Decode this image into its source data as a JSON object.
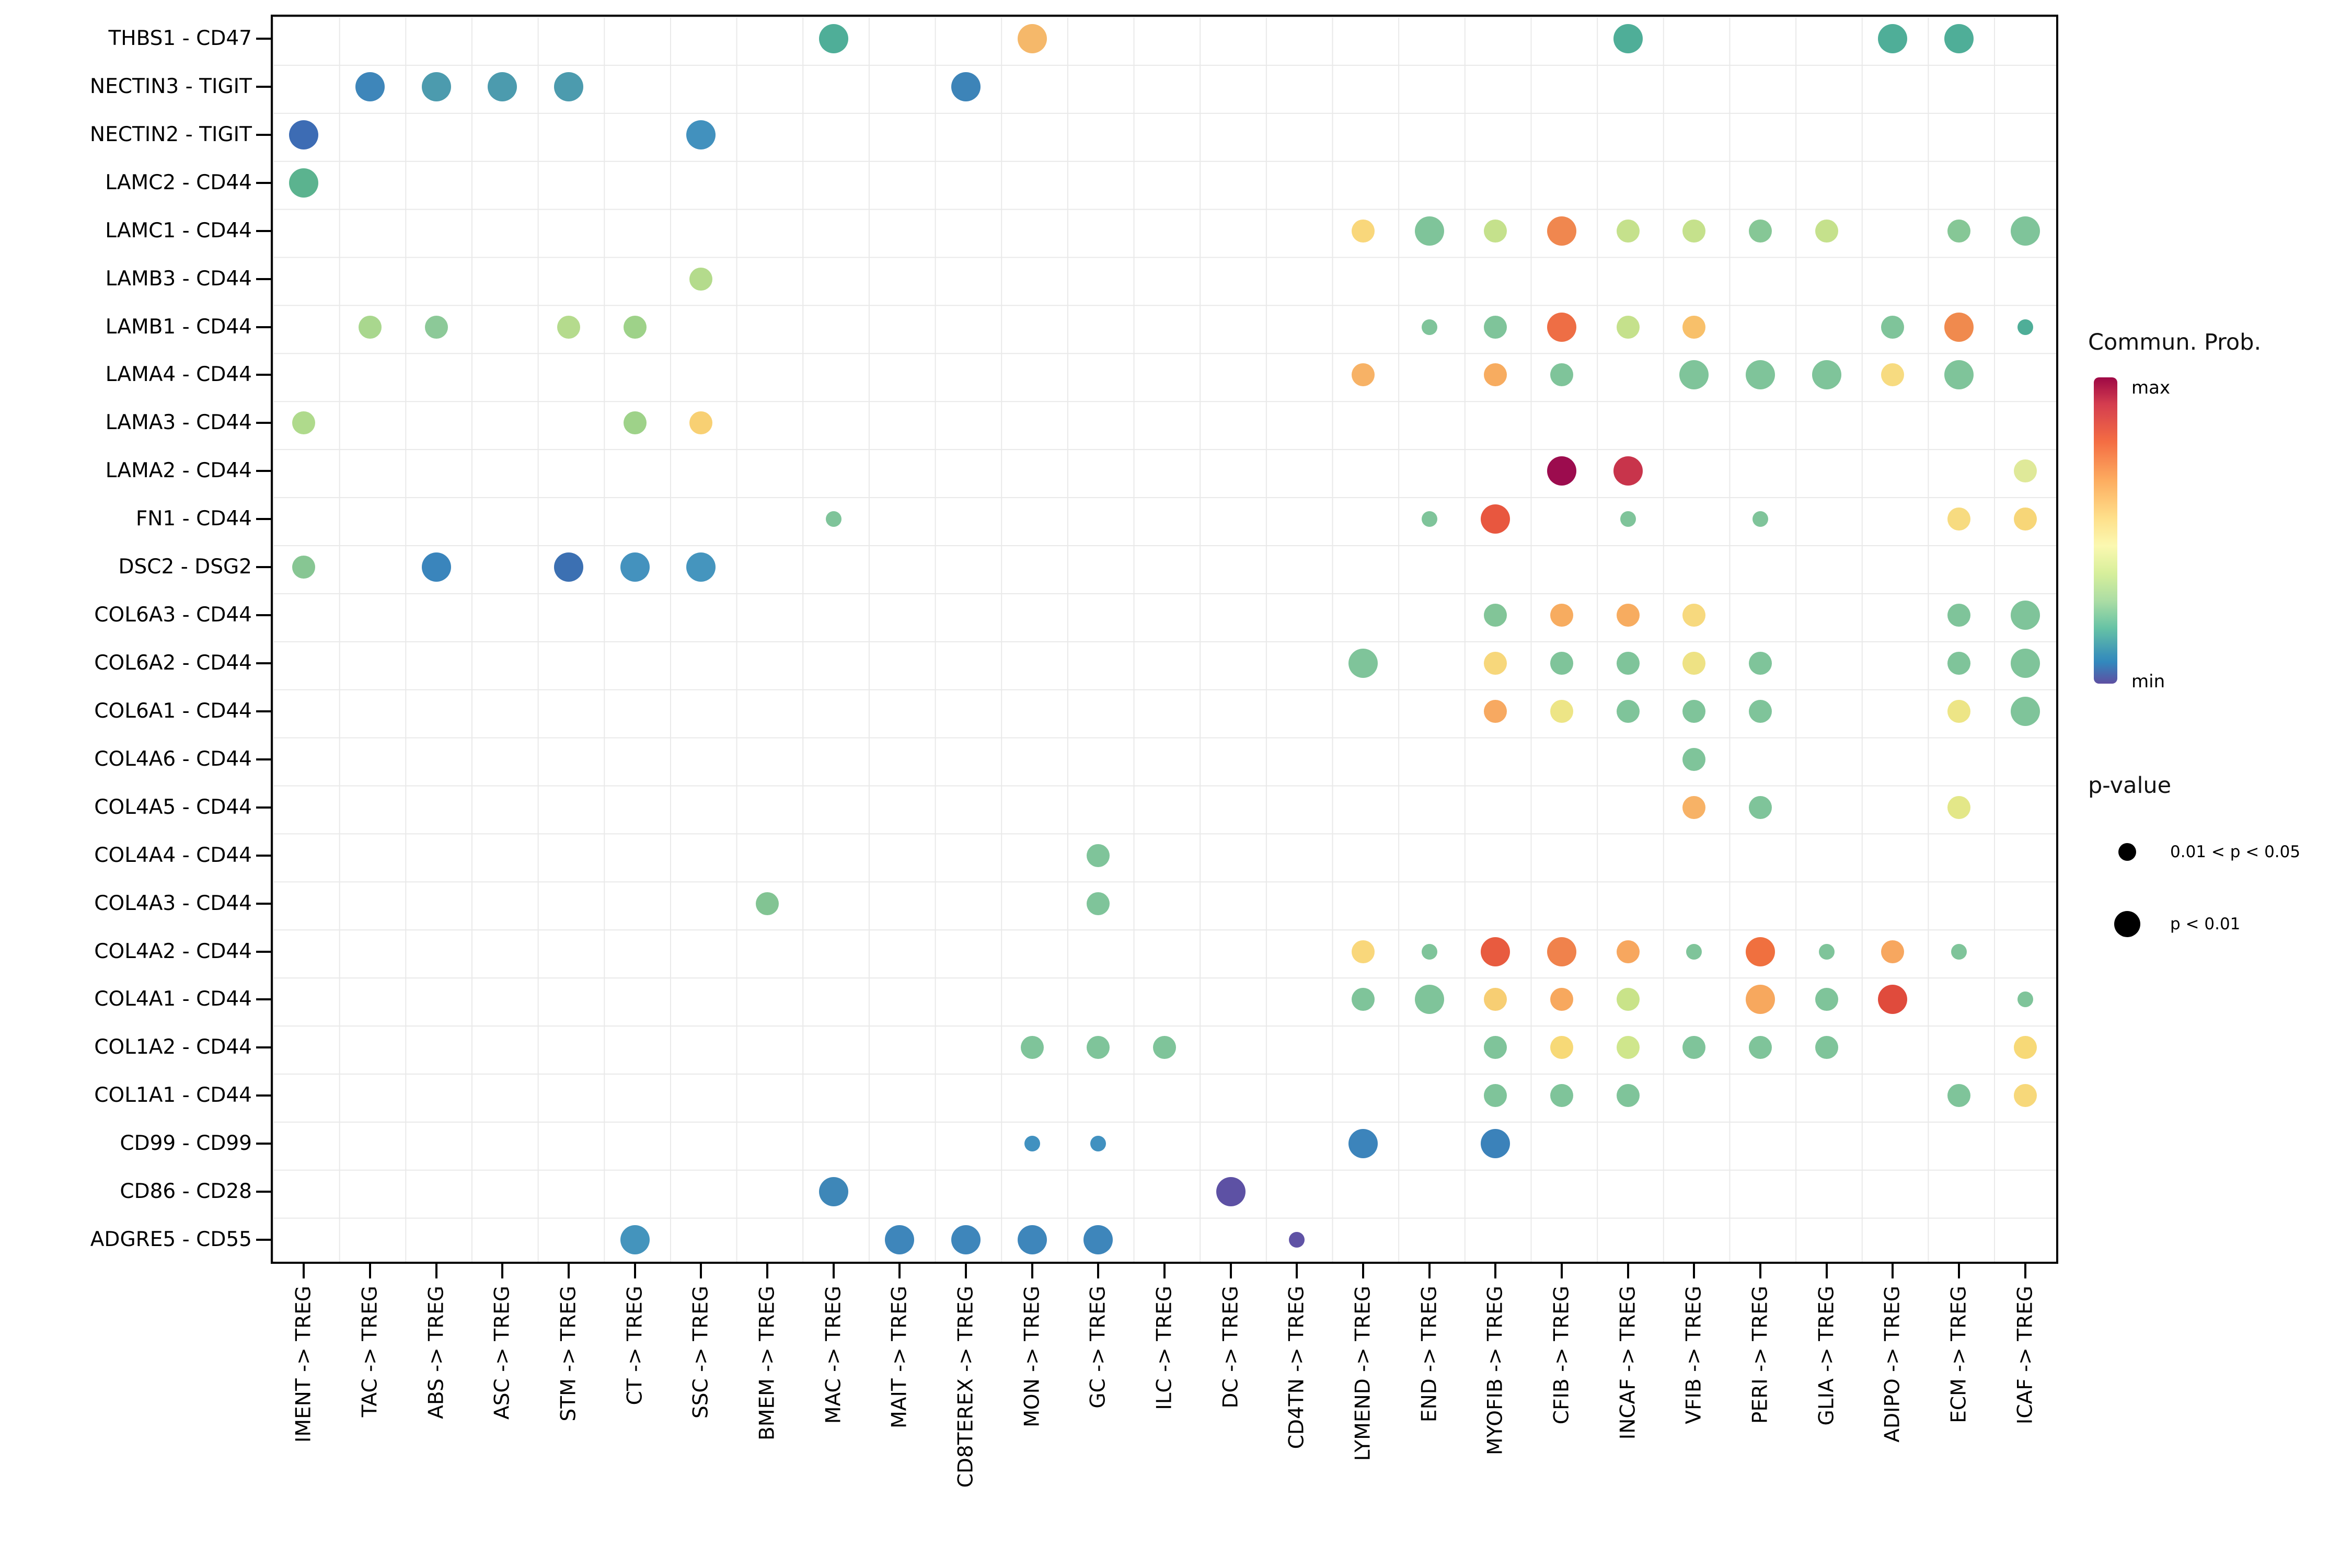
{
  "legend": {
    "color": {
      "title": "Commun. Prob.",
      "max_label": "max",
      "min_label": "min",
      "gradient_top_to_bottom": [
        "#9E0845",
        "#D53E4F",
        "#F46D43",
        "#FDAE61",
        "#FEE08B",
        "#FBF8B0",
        "#D7EF9B",
        "#ABDDA4",
        "#66C2A5",
        "#3E96B7",
        "#3288BD",
        "#5E4FA2"
      ]
    },
    "size": {
      "title": "p-value",
      "items": [
        {
          "label": "0.01 < p < 0.05",
          "dot": "small"
        },
        {
          "label": "p < 0.01",
          "dot": "large"
        }
      ]
    }
  },
  "chart_data": {
    "type": "scatter",
    "subtype": "bubble-dotplot",
    "grid": true,
    "x_categories": [
      "IMENT -> TREG",
      "TAC -> TREG",
      "ABS -> TREG",
      "ASC -> TREG",
      "STM -> TREG",
      "CT -> TREG",
      "SSC -> TREG",
      "BMEM -> TREG",
      "MAC -> TREG",
      "MAIT -> TREG",
      "CD8TEREX -> TREG",
      "MON -> TREG",
      "GC -> TREG",
      "ILC -> TREG",
      "DC -> TREG",
      "CD4TN -> TREG",
      "LYMEND -> TREG",
      "END -> TREG",
      "MYOFIB -> TREG",
      "CFIB -> TREG",
      "INCAF -> TREG",
      "VFIB -> TREG",
      "PERI -> TREG",
      "GLIA -> TREG",
      "ADIPO -> TREG",
      "ECM -> TREG",
      "ICAF -> TREG"
    ],
    "y_categories": [
      "THBS1 - CD47",
      "NECTIN3 - TIGIT",
      "NECTIN2 - TIGIT",
      "LAMC2 - CD44",
      "LAMC1 - CD44",
      "LAMB3 - CD44",
      "LAMB1 - CD44",
      "LAMA4 - CD44",
      "LAMA3 - CD44",
      "LAMA2 - CD44",
      "FN1 - CD44",
      "DSC2 - DSG2",
      "COL6A3 - CD44",
      "COL6A2 - CD44",
      "COL6A1 - CD44",
      "COL4A6 - CD44",
      "COL4A5 - CD44",
      "COL4A4 - CD44",
      "COL4A3 - CD44",
      "COL4A2 - CD44",
      "COL4A1 - CD44",
      "COL1A2 - CD44",
      "COL1A1 - CD44",
      "CD99 - CD99",
      "CD86 - CD28",
      "ADGRE5 - CD55"
    ],
    "size_classes": {
      "0": "0.01 < p < 0.05",
      "1": "p < 0.01",
      "2": "p < 0.01"
    },
    "points": [
      {
        "yi": 0,
        "xi": 8,
        "color": "#4FAE98",
        "size": 2
      },
      {
        "yi": 0,
        "xi": 11,
        "color": "#F5B86A",
        "size": 2
      },
      {
        "yi": 0,
        "xi": 20,
        "color": "#4FAE98",
        "size": 2
      },
      {
        "yi": 0,
        "xi": 24,
        "color": "#4FAE98",
        "size": 2
      },
      {
        "yi": 0,
        "xi": 25,
        "color": "#4FAE98",
        "size": 2
      },
      {
        "yi": 1,
        "xi": 1,
        "color": "#3E86BA",
        "size": 2
      },
      {
        "yi": 1,
        "xi": 2,
        "color": "#4C9BAE",
        "size": 2
      },
      {
        "yi": 1,
        "xi": 3,
        "color": "#4C9BAE",
        "size": 2
      },
      {
        "yi": 1,
        "xi": 4,
        "color": "#4C9BAE",
        "size": 2
      },
      {
        "yi": 1,
        "xi": 10,
        "color": "#3D84B8",
        "size": 2
      },
      {
        "yi": 2,
        "xi": 0,
        "color": "#3D6CB4",
        "size": 2
      },
      {
        "yi": 2,
        "xi": 6,
        "color": "#4291BE",
        "size": 2
      },
      {
        "yi": 3,
        "xi": 0,
        "color": "#5BB38F",
        "size": 2
      },
      {
        "yi": 4,
        "xi": 16,
        "color": "#F9D77B",
        "size": 1
      },
      {
        "yi": 4,
        "xi": 17,
        "color": "#7FC49A",
        "size": 2
      },
      {
        "yi": 4,
        "xi": 18,
        "color": "#C5E18C",
        "size": 1
      },
      {
        "yi": 4,
        "xi": 19,
        "color": "#F0874F",
        "size": 2
      },
      {
        "yi": 4,
        "xi": 20,
        "color": "#C5E18C",
        "size": 1
      },
      {
        "yi": 4,
        "xi": 21,
        "color": "#C5E18C",
        "size": 1
      },
      {
        "yi": 4,
        "xi": 22,
        "color": "#86C796",
        "size": 1
      },
      {
        "yi": 4,
        "xi": 23,
        "color": "#C5E18C",
        "size": 1
      },
      {
        "yi": 4,
        "xi": 25,
        "color": "#86C796",
        "size": 1
      },
      {
        "yi": 4,
        "xi": 26,
        "color": "#7FC49A",
        "size": 2
      },
      {
        "yi": 5,
        "xi": 6,
        "color": "#B4DB8C",
        "size": 1
      },
      {
        "yi": 6,
        "xi": 1,
        "color": "#A9D78E",
        "size": 1
      },
      {
        "yi": 6,
        "xi": 2,
        "color": "#8CC998",
        "size": 1
      },
      {
        "yi": 6,
        "xi": 4,
        "color": "#B5DB8D",
        "size": 1
      },
      {
        "yi": 6,
        "xi": 5,
        "color": "#9ED289",
        "size": 1
      },
      {
        "yi": 6,
        "xi": 17,
        "color": "#7FC49A",
        "size": 0
      },
      {
        "yi": 6,
        "xi": 18,
        "color": "#7FC49A",
        "size": 1
      },
      {
        "yi": 6,
        "xi": 19,
        "color": "#EE6E45",
        "size": 2
      },
      {
        "yi": 6,
        "xi": 20,
        "color": "#C5E18C",
        "size": 1
      },
      {
        "yi": 6,
        "xi": 21,
        "color": "#F8C06A",
        "size": 1
      },
      {
        "yi": 6,
        "xi": 24,
        "color": "#7FC49A",
        "size": 1
      },
      {
        "yi": 6,
        "xi": 25,
        "color": "#F08A4E",
        "size": 2
      },
      {
        "yi": 6,
        "xi": 26,
        "color": "#4FAE98",
        "size": 0
      },
      {
        "yi": 7,
        "xi": 16,
        "color": "#F7B266",
        "size": 1
      },
      {
        "yi": 7,
        "xi": 18,
        "color": "#F7AC60",
        "size": 1
      },
      {
        "yi": 7,
        "xi": 19,
        "color": "#7FC49A",
        "size": 1
      },
      {
        "yi": 7,
        "xi": 21,
        "color": "#7FC49A",
        "size": 2
      },
      {
        "yi": 7,
        "xi": 22,
        "color": "#7FC49A",
        "size": 2
      },
      {
        "yi": 7,
        "xi": 23,
        "color": "#7FC49A",
        "size": 2
      },
      {
        "yi": 7,
        "xi": 24,
        "color": "#F7DB80",
        "size": 1
      },
      {
        "yi": 7,
        "xi": 25,
        "color": "#7FC49A",
        "size": 2
      },
      {
        "yi": 8,
        "xi": 0,
        "color": "#AFDA8C",
        "size": 1
      },
      {
        "yi": 8,
        "xi": 5,
        "color": "#9ED289",
        "size": 1
      },
      {
        "yi": 8,
        "xi": 6,
        "color": "#F8D073",
        "size": 1
      },
      {
        "yi": 9,
        "xi": 19,
        "color": "#9C0C4E",
        "size": 2
      },
      {
        "yi": 9,
        "xi": 20,
        "color": "#C8344B",
        "size": 2
      },
      {
        "yi": 9,
        "xi": 26,
        "color": "#DFE999",
        "size": 1
      },
      {
        "yi": 10,
        "xi": 8,
        "color": "#7FC49A",
        "size": 0
      },
      {
        "yi": 10,
        "xi": 17,
        "color": "#7FC49A",
        "size": 0
      },
      {
        "yi": 10,
        "xi": 18,
        "color": "#E8573F",
        "size": 2
      },
      {
        "yi": 10,
        "xi": 20,
        "color": "#7FC49A",
        "size": 0
      },
      {
        "yi": 10,
        "xi": 22,
        "color": "#7FC49A",
        "size": 0
      },
      {
        "yi": 10,
        "xi": 25,
        "color": "#F7DB80",
        "size": 1
      },
      {
        "yi": 10,
        "xi": 26,
        "color": "#F7D678",
        "size": 1
      },
      {
        "yi": 11,
        "xi": 0,
        "color": "#87C693",
        "size": 1
      },
      {
        "yi": 11,
        "xi": 2,
        "color": "#3A85BC",
        "size": 2
      },
      {
        "yi": 11,
        "xi": 4,
        "color": "#3C70B2",
        "size": 2
      },
      {
        "yi": 11,
        "xi": 5,
        "color": "#4492BE",
        "size": 2
      },
      {
        "yi": 11,
        "xi": 6,
        "color": "#4595BE",
        "size": 2
      },
      {
        "yi": 12,
        "xi": 18,
        "color": "#82C598",
        "size": 1
      },
      {
        "yi": 12,
        "xi": 19,
        "color": "#F7AC60",
        "size": 1
      },
      {
        "yi": 12,
        "xi": 20,
        "color": "#F7AC60",
        "size": 1
      },
      {
        "yi": 12,
        "xi": 21,
        "color": "#F7D97E",
        "size": 1
      },
      {
        "yi": 12,
        "xi": 25,
        "color": "#7FC49A",
        "size": 1
      },
      {
        "yi": 12,
        "xi": 26,
        "color": "#7FC49A",
        "size": 2
      },
      {
        "yi": 13,
        "xi": 16,
        "color": "#7FC49A",
        "size": 2
      },
      {
        "yi": 13,
        "xi": 18,
        "color": "#F7D77B",
        "size": 1
      },
      {
        "yi": 13,
        "xi": 19,
        "color": "#7FC49A",
        "size": 1
      },
      {
        "yi": 13,
        "xi": 20,
        "color": "#7FC49A",
        "size": 1
      },
      {
        "yi": 13,
        "xi": 21,
        "color": "#EEE284",
        "size": 1
      },
      {
        "yi": 13,
        "xi": 22,
        "color": "#7FC49A",
        "size": 1
      },
      {
        "yi": 13,
        "xi": 25,
        "color": "#7FC49A",
        "size": 1
      },
      {
        "yi": 13,
        "xi": 26,
        "color": "#7FC49A",
        "size": 2
      },
      {
        "yi": 14,
        "xi": 18,
        "color": "#F7A961",
        "size": 1
      },
      {
        "yi": 14,
        "xi": 19,
        "color": "#EDE586",
        "size": 1
      },
      {
        "yi": 14,
        "xi": 20,
        "color": "#7FC49A",
        "size": 1
      },
      {
        "yi": 14,
        "xi": 21,
        "color": "#7FC49A",
        "size": 1
      },
      {
        "yi": 14,
        "xi": 22,
        "color": "#7FC49A",
        "size": 1
      },
      {
        "yi": 14,
        "xi": 25,
        "color": "#EDE586",
        "size": 1
      },
      {
        "yi": 14,
        "xi": 26,
        "color": "#7FC49A",
        "size": 2
      },
      {
        "yi": 15,
        "xi": 21,
        "color": "#7FC49A",
        "size": 1
      },
      {
        "yi": 16,
        "xi": 21,
        "color": "#F7B266",
        "size": 1
      },
      {
        "yi": 16,
        "xi": 22,
        "color": "#7FC49A",
        "size": 1
      },
      {
        "yi": 16,
        "xi": 25,
        "color": "#E3E788",
        "size": 1
      },
      {
        "yi": 17,
        "xi": 12,
        "color": "#7FC49A",
        "size": 1
      },
      {
        "yi": 18,
        "xi": 7,
        "color": "#82C493",
        "size": 1
      },
      {
        "yi": 18,
        "xi": 12,
        "color": "#7FC49A",
        "size": 1
      },
      {
        "yi": 19,
        "xi": 16,
        "color": "#F9D77B",
        "size": 1
      },
      {
        "yi": 19,
        "xi": 17,
        "color": "#7FC49A",
        "size": 0
      },
      {
        "yi": 19,
        "xi": 18,
        "color": "#E85B3F",
        "size": 2
      },
      {
        "yi": 19,
        "xi": 19,
        "color": "#F0824C",
        "size": 2
      },
      {
        "yi": 19,
        "xi": 20,
        "color": "#F7A75F",
        "size": 1
      },
      {
        "yi": 19,
        "xi": 21,
        "color": "#7FC49A",
        "size": 0
      },
      {
        "yi": 19,
        "xi": 22,
        "color": "#F0703F",
        "size": 2
      },
      {
        "yi": 19,
        "xi": 23,
        "color": "#7FC49A",
        "size": 0
      },
      {
        "yi": 19,
        "xi": 24,
        "color": "#F7A75F",
        "size": 1
      },
      {
        "yi": 19,
        "xi": 25,
        "color": "#7FC49A",
        "size": 0
      },
      {
        "yi": 20,
        "xi": 16,
        "color": "#7FC49A",
        "size": 1
      },
      {
        "yi": 20,
        "xi": 17,
        "color": "#7FC49A",
        "size": 2
      },
      {
        "yi": 20,
        "xi": 18,
        "color": "#F7CE73",
        "size": 1
      },
      {
        "yi": 20,
        "xi": 19,
        "color": "#F7A85E",
        "size": 1
      },
      {
        "yi": 20,
        "xi": 20,
        "color": "#C9E389",
        "size": 1
      },
      {
        "yi": 20,
        "xi": 22,
        "color": "#F7A85E",
        "size": 2
      },
      {
        "yi": 20,
        "xi": 23,
        "color": "#7FC49A",
        "size": 1
      },
      {
        "yi": 20,
        "xi": 24,
        "color": "#E04B3C",
        "size": 2
      },
      {
        "yi": 20,
        "xi": 26,
        "color": "#7FC49A",
        "size": 0
      },
      {
        "yi": 21,
        "xi": 11,
        "color": "#7FC49A",
        "size": 1
      },
      {
        "yi": 21,
        "xi": 12,
        "color": "#7FC49A",
        "size": 1
      },
      {
        "yi": 21,
        "xi": 13,
        "color": "#7FC49A",
        "size": 1
      },
      {
        "yi": 21,
        "xi": 18,
        "color": "#7FC49A",
        "size": 1
      },
      {
        "yi": 21,
        "xi": 19,
        "color": "#F7D977",
        "size": 1
      },
      {
        "yi": 21,
        "xi": 20,
        "color": "#CFE68C",
        "size": 1
      },
      {
        "yi": 21,
        "xi": 21,
        "color": "#7FC49A",
        "size": 1
      },
      {
        "yi": 21,
        "xi": 22,
        "color": "#7FC49A",
        "size": 1
      },
      {
        "yi": 21,
        "xi": 23,
        "color": "#7FC49A",
        "size": 1
      },
      {
        "yi": 21,
        "xi": 26,
        "color": "#F7D977",
        "size": 1
      },
      {
        "yi": 22,
        "xi": 18,
        "color": "#7FC49A",
        "size": 1
      },
      {
        "yi": 22,
        "xi": 19,
        "color": "#7FC49A",
        "size": 1
      },
      {
        "yi": 22,
        "xi": 20,
        "color": "#7FC49A",
        "size": 1
      },
      {
        "yi": 22,
        "xi": 25,
        "color": "#7FC49A",
        "size": 1
      },
      {
        "yi": 22,
        "xi": 26,
        "color": "#F7D87A",
        "size": 1
      },
      {
        "yi": 23,
        "xi": 11,
        "color": "#4191C0",
        "size": 0
      },
      {
        "yi": 23,
        "xi": 12,
        "color": "#4191C0",
        "size": 0
      },
      {
        "yi": 23,
        "xi": 16,
        "color": "#3C84BB",
        "size": 2
      },
      {
        "yi": 23,
        "xi": 18,
        "color": "#3B82BA",
        "size": 2
      },
      {
        "yi": 24,
        "xi": 8,
        "color": "#3E87B8",
        "size": 2
      },
      {
        "yi": 24,
        "xi": 14,
        "color": "#5D51A4",
        "size": 2
      },
      {
        "yi": 25,
        "xi": 5,
        "color": "#4494BD",
        "size": 2
      },
      {
        "yi": 25,
        "xi": 9,
        "color": "#3E86BB",
        "size": 2
      },
      {
        "yi": 25,
        "xi": 10,
        "color": "#3E86BB",
        "size": 2
      },
      {
        "yi": 25,
        "xi": 11,
        "color": "#3E86BB",
        "size": 2
      },
      {
        "yi": 25,
        "xi": 12,
        "color": "#3E86BB",
        "size": 2
      },
      {
        "yi": 25,
        "xi": 15,
        "color": "#5F52A5",
        "size": 0
      }
    ]
  }
}
